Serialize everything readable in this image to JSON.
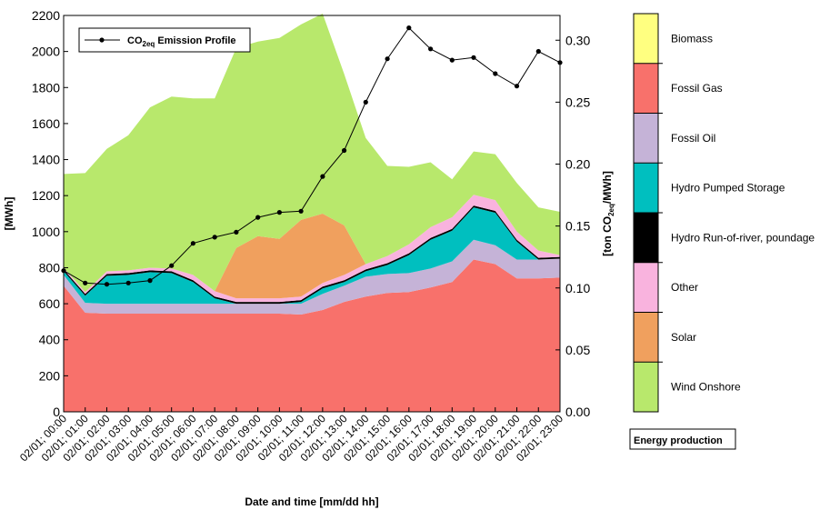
{
  "chart_data": {
    "type": "area",
    "subtype": "stacked-area-with-line",
    "xlabel": "Date and time [mm/dd hh]",
    "ylabel_left": "[MWh]",
    "ylabel_right_pre": "[ton CO",
    "ylabel_right_sub": "2eq",
    "ylabel_right_post": "/MWh]",
    "ylim_left": [
      0,
      2200
    ],
    "ylim_right": [
      0,
      0.32
    ],
    "yticks_left": [
      "0",
      "200",
      "400",
      "600",
      "800",
      "1000",
      "1200",
      "1400",
      "1600",
      "1800",
      "2000",
      "2200"
    ],
    "yticks_right": [
      "0.00",
      "0.05",
      "0.10",
      "0.15",
      "0.20",
      "0.25",
      "0.30"
    ],
    "categories": [
      "02/01; 00:00",
      "02/01; 01:00",
      "02/01; 02:00",
      "02/01; 03:00",
      "02/01; 04:00",
      "02/01; 05:00",
      "02/01; 06:00",
      "02/01; 07:00",
      "02/01; 08:00",
      "02/01; 09:00",
      "02/01; 10:00",
      "02/01; 11:00",
      "02/01; 12:00",
      "02/01; 13:00",
      "02/01; 14:00",
      "02/01; 15:00",
      "02/01; 16:00",
      "02/01; 17:00",
      "02/01; 18:00",
      "02/01; 19:00",
      "02/01; 20:00",
      "02/01; 21:00",
      "02/01; 22:00",
      "02/01; 23:00"
    ],
    "stack_order": "bottom-to-top",
    "series": [
      {
        "name": "Fossil Gas",
        "color": "#f8716b",
        "values": [
          700,
          550,
          545,
          545,
          545,
          545,
          545,
          545,
          545,
          545,
          545,
          540,
          565,
          610,
          640,
          660,
          665,
          690,
          720,
          845,
          820,
          740,
          740,
          745
        ]
      },
      {
        "name": "Fossil Oil",
        "color": "#c5b3d7",
        "values": [
          60,
          55,
          55,
          55,
          55,
          55,
          55,
          55,
          55,
          55,
          55,
          60,
          90,
          90,
          110,
          105,
          105,
          105,
          115,
          110,
          105,
          105,
          105,
          105
        ]
      },
      {
        "name": "Hydro Pumped Storage",
        "color": "#00bfbf",
        "values": [
          20,
          40,
          155,
          160,
          175,
          170,
          120,
          30,
          0,
          0,
          0,
          10,
          30,
          20,
          30,
          50,
          100,
          160,
          170,
          180,
          180,
          100,
          0,
          0
        ]
      },
      {
        "name": "Hydro Run-of-river, poundage",
        "color": "#000000",
        "values": [
          10,
          10,
          10,
          10,
          10,
          10,
          10,
          10,
          10,
          10,
          10,
          10,
          10,
          10,
          10,
          10,
          10,
          10,
          10,
          10,
          10,
          10,
          10,
          10
        ]
      },
      {
        "name": "Other",
        "color": "#f9b3de",
        "values": [
          10,
          10,
          15,
          15,
          15,
          15,
          30,
          30,
          20,
          20,
          20,
          20,
          20,
          30,
          30,
          40,
          50,
          60,
          65,
          60,
          60,
          45,
          40,
          10
        ]
      },
      {
        "name": "Solar",
        "color": "#f0a05e",
        "values": [
          0,
          0,
          0,
          0,
          0,
          0,
          0,
          0,
          280,
          345,
          330,
          425,
          385,
          275,
          0,
          0,
          0,
          0,
          0,
          0,
          0,
          0,
          0,
          0
        ]
      },
      {
        "name": "Wind Onshore",
        "color": "#b8e86c",
        "values": [
          520,
          660,
          680,
          750,
          890,
          955,
          980,
          1070,
          1110,
          1080,
          1115,
          1085,
          1110,
          840,
          700,
          500,
          430,
          360,
          210,
          240,
          255,
          270,
          240,
          240
        ]
      },
      {
        "name": "Biomass",
        "color": "#ffff80",
        "values": [
          0,
          0,
          0,
          0,
          0,
          0,
          0,
          0,
          0,
          0,
          0,
          0,
          0,
          0,
          0,
          0,
          0,
          0,
          0,
          0,
          0,
          0,
          0,
          0
        ]
      }
    ],
    "line_series": {
      "name_main": "CO",
      "name_sub": "2eq",
      "name_rest": " Emission Profile",
      "axis": "right",
      "color": "#000000",
      "values": [
        0.114,
        0.104,
        0.103,
        0.104,
        0.106,
        0.118,
        0.136,
        0.141,
        0.145,
        0.157,
        0.161,
        0.162,
        0.19,
        0.211,
        0.25,
        0.285,
        0.31,
        0.293,
        0.284,
        0.286,
        0.273,
        0.263,
        0.291,
        0.282
      ]
    },
    "legend_line_placement": "top-left",
    "legend_box": {
      "title": "Energy production",
      "entries_top_to_bottom": [
        "Biomass",
        "Fossil Gas",
        "Fossil Oil",
        "Hydro Pumped Storage",
        "Hydro Run-of-river, poundage",
        "Other",
        "Solar",
        "Wind Onshore"
      ]
    },
    "grid": false
  }
}
